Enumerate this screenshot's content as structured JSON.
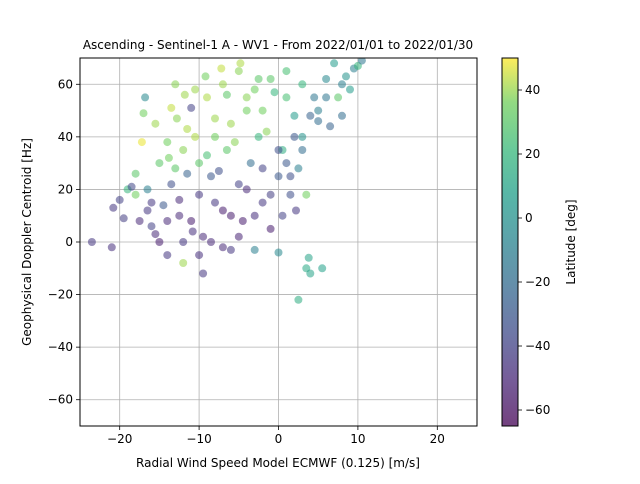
{
  "chart_data": {
    "type": "scatter",
    "title": "Ascending - Sentinel-1 A - WV1 - From 2022/01/01 to 2022/01/30",
    "xlabel": "Radial Wind Speed Model ECMWF (0.125) [m/s]",
    "ylabel": "Geophysical Doppler Centroid [Hz]",
    "xlim": [
      -25,
      25
    ],
    "ylim": [
      -70,
      70
    ],
    "xticks": [
      -20,
      -10,
      0,
      10,
      20
    ],
    "yticks": [
      -60,
      -40,
      -20,
      0,
      20,
      40,
      60
    ],
    "grid": true,
    "colorbar": {
      "label": "Latitude [deg]",
      "range": [
        -65,
        50
      ],
      "ticks": [
        -60,
        -40,
        -20,
        0,
        20,
        40
      ],
      "colormap": "viridis",
      "alpha": 0.55
    },
    "points_note": "dense cloud of several thousand points; representative sample of x, y, latitude",
    "points": [
      [
        -23.5,
        0,
        -45
      ],
      [
        -21.0,
        -2,
        -48
      ],
      [
        -20.8,
        13,
        -45
      ],
      [
        -20.0,
        16,
        -40
      ],
      [
        -19.5,
        9,
        -42
      ],
      [
        -19.0,
        20,
        20
      ],
      [
        -18.5,
        21,
        -38
      ],
      [
        -18.0,
        26,
        30
      ],
      [
        -17.2,
        38,
        48
      ],
      [
        -17.0,
        49,
        35
      ],
      [
        -16.8,
        55,
        -5
      ],
      [
        -16.5,
        12,
        -45
      ],
      [
        -16.0,
        6,
        -40
      ],
      [
        -15.5,
        3,
        -50
      ],
      [
        -15.0,
        0,
        -55
      ],
      [
        -14.5,
        14,
        -30
      ],
      [
        -14.0,
        -5,
        -45
      ],
      [
        -13.8,
        32,
        35
      ],
      [
        -13.5,
        22,
        -35
      ],
      [
        -13.0,
        60,
        38
      ],
      [
        -12.8,
        47,
        38
      ],
      [
        -12.5,
        10,
        -50
      ],
      [
        -12.0,
        -8,
        40
      ],
      [
        -11.8,
        56,
        40
      ],
      [
        -11.5,
        26,
        -25
      ],
      [
        -11.0,
        51,
        -40
      ],
      [
        -10.8,
        4,
        -48
      ],
      [
        -10.5,
        40,
        42
      ],
      [
        -10.0,
        18,
        -45
      ],
      [
        -9.5,
        -12,
        -45
      ],
      [
        -9.2,
        63,
        35
      ],
      [
        -9.0,
        33,
        25
      ],
      [
        -8.5,
        0,
        -50
      ],
      [
        -8.0,
        47,
        40
      ],
      [
        -7.5,
        27,
        -35
      ],
      [
        -7.2,
        66,
        44
      ],
      [
        -7.0,
        12,
        -55
      ],
      [
        -6.5,
        56,
        30
      ],
      [
        -6.0,
        -3,
        -45
      ],
      [
        -5.5,
        38,
        38
      ],
      [
        -5.0,
        22,
        -40
      ],
      [
        -4.8,
        68,
        42
      ],
      [
        -4.5,
        8,
        -55
      ],
      [
        -4.0,
        50,
        35
      ],
      [
        -3.5,
        30,
        -20
      ],
      [
        -3.0,
        -3,
        -10
      ],
      [
        -2.5,
        62,
        30
      ],
      [
        -2.0,
        15,
        -45
      ],
      [
        -1.5,
        42,
        38
      ],
      [
        -1.0,
        5,
        -55
      ],
      [
        -0.5,
        57,
        20
      ],
      [
        0.0,
        25,
        -30
      ],
      [
        0.5,
        35,
        15
      ],
      [
        0.0,
        -4,
        -5
      ],
      [
        1.0,
        65,
        25
      ],
      [
        1.5,
        18,
        -35
      ],
      [
        2.0,
        48,
        5
      ],
      [
        2.5,
        28,
        -10
      ],
      [
        2.5,
        -22,
        15
      ],
      [
        3.0,
        60,
        20
      ],
      [
        3.0,
        40,
        0
      ],
      [
        3.5,
        18,
        35
      ],
      [
        3.8,
        -6,
        10
      ],
      [
        3.5,
        -10,
        12
      ],
      [
        4.0,
        -12,
        10
      ],
      [
        4.5,
        55,
        -15
      ],
      [
        5.0,
        46,
        -20
      ],
      [
        5.5,
        -10,
        8
      ],
      [
        6.0,
        62,
        -5
      ],
      [
        6.5,
        44,
        -25
      ],
      [
        7.0,
        68,
        5
      ],
      [
        7.5,
        55,
        30
      ],
      [
        8.0,
        48,
        -20
      ],
      [
        8.5,
        63,
        0
      ],
      [
        9.0,
        58,
        5
      ],
      [
        9.5,
        66,
        -10
      ],
      [
        10.0,
        67,
        20
      ],
      [
        10.5,
        69,
        -15
      ],
      [
        -15.5,
        45,
        40
      ],
      [
        -14.0,
        38,
        35
      ],
      [
        -13.0,
        28,
        30
      ],
      [
        -12.0,
        35,
        38
      ],
      [
        -10.0,
        30,
        30
      ],
      [
        -8.0,
        40,
        35
      ],
      [
        -6.0,
        45,
        40
      ],
      [
        -4.0,
        55,
        38
      ],
      [
        -2.0,
        50,
        35
      ],
      [
        -12.5,
        16,
        -50
      ],
      [
        -11.0,
        8,
        -55
      ],
      [
        -9.5,
        2,
        -50
      ],
      [
        -8.0,
        15,
        -45
      ],
      [
        -6.0,
        10,
        -55
      ],
      [
        -4.0,
        20,
        -50
      ],
      [
        -2.0,
        28,
        -40
      ],
      [
        0.0,
        35,
        -35
      ],
      [
        2.0,
        40,
        -30
      ],
      [
        4.0,
        48,
        -25
      ],
      [
        6.0,
        55,
        -15
      ],
      [
        8.0,
        60,
        -10
      ],
      [
        -17.5,
        8,
        -50
      ],
      [
        -16.0,
        15,
        -45
      ],
      [
        -14.0,
        8,
        -50
      ],
      [
        -12.0,
        0,
        -45
      ],
      [
        -10.0,
        -5,
        -48
      ],
      [
        -7.0,
        -2,
        -50
      ],
      [
        -5.0,
        2,
        -52
      ],
      [
        -3.0,
        10,
        -48
      ],
      [
        -1.0,
        18,
        -42
      ],
      [
        1.0,
        30,
        -30
      ],
      [
        3.0,
        35,
        -20
      ],
      [
        5.0,
        50,
        -10
      ],
      [
        -9.0,
        55,
        42
      ],
      [
        -7.0,
        60,
        40
      ],
      [
        -5.0,
        65,
        38
      ],
      [
        -3.0,
        58,
        35
      ],
      [
        -1.0,
        62,
        30
      ],
      [
        1.0,
        55,
        25
      ],
      [
        -8.5,
        25,
        -30
      ],
      [
        -6.5,
        35,
        30
      ],
      [
        -2.5,
        40,
        20
      ],
      [
        -11.5,
        43,
        42
      ],
      [
        -13.5,
        51,
        44
      ],
      [
        -15.0,
        30,
        30
      ],
      [
        0.5,
        10,
        -40
      ],
      [
        1.5,
        25,
        -35
      ],
      [
        2.2,
        12,
        -45
      ],
      [
        -16.5,
        20,
        -10
      ],
      [
        -18.0,
        18,
        35
      ],
      [
        -10.5,
        58,
        40
      ]
    ]
  }
}
